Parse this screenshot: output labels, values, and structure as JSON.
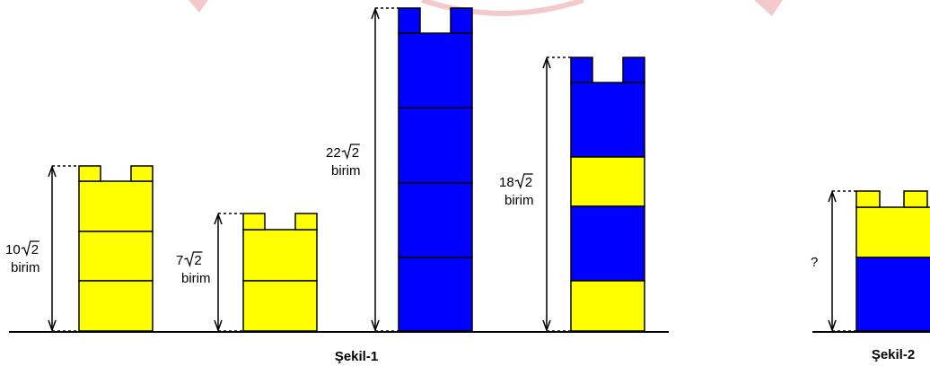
{
  "colors": {
    "yellow": "#ffff00",
    "blue": "#0000ff",
    "outline": "#000000",
    "watermark": "#f4c9c9"
  },
  "figure1": {
    "caption": "Şekil-1",
    "towers": [
      {
        "coef": "10",
        "radicand": "2",
        "unit": "birim",
        "blocks": [
          "yellow",
          "yellow",
          "yellow"
        ],
        "top": "yellow"
      },
      {
        "coef": "7",
        "radicand": "2",
        "unit": "birim",
        "blocks": [
          "yellow",
          "yellow"
        ],
        "top": "yellow"
      },
      {
        "coef": "22",
        "radicand": "2",
        "unit": "birim",
        "blocks": [
          "blue",
          "blue",
          "blue",
          "blue"
        ],
        "top": "blue"
      },
      {
        "coef": "18",
        "radicand": "2",
        "unit": "birim",
        "blocks": [
          "yellow",
          "blue",
          "yellow",
          "blue"
        ],
        "top": "blue"
      }
    ]
  },
  "figure2": {
    "caption": "Şekil-2",
    "unknown": "?",
    "blocks": [
      "blue",
      "yellow"
    ],
    "top": "yellow"
  }
}
